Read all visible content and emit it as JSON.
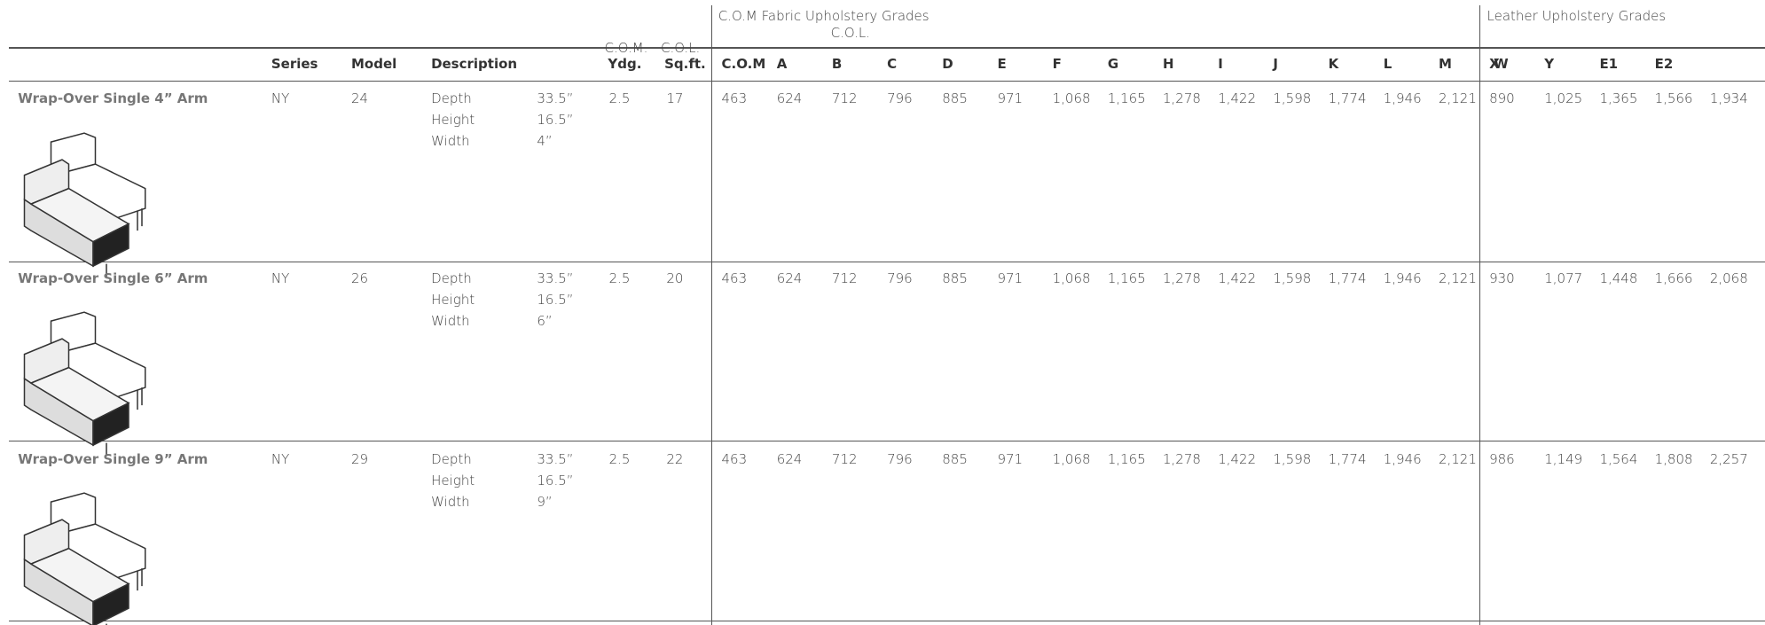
{
  "header": {
    "com_group": {
      "com": "C.O.M.",
      "col": "C.O.L."
    },
    "fabric_group": {
      "title": "C.O.M Fabric Upholstery Grades",
      "col": "C.O.L."
    },
    "leather_group": "Leather Upholstery Grades"
  },
  "table": {
    "columns": [
      "Series",
      "Model",
      "Description",
      "Ydg.",
      "Sq.ft.",
      "C.O.M",
      "A",
      "B",
      "C",
      "D",
      "E",
      "F",
      "G",
      "H",
      "I",
      "J",
      "K",
      "L",
      "M",
      "W",
      "X",
      "Y",
      "E1",
      "E2"
    ],
    "rows": [
      {
        "name": "Wrap-Over Single 4” Arm",
        "series": "NY",
        "model": "24",
        "dimensions": [
          [
            "Depth",
            "33.5”"
          ],
          [
            "Height",
            "16.5”"
          ],
          [
            "Width",
            "4”"
          ]
        ],
        "ydg": "2.5",
        "sqft": "17",
        "fabric": [
          "463",
          "624",
          "712",
          "796",
          "885",
          "971",
          "1,068",
          "1,165",
          "1,278",
          "1,422",
          "1,598",
          "1,774",
          "1,946",
          "2,121"
        ],
        "leather": [
          "890",
          "1,025",
          "1,365",
          "1,566",
          "1,934"
        ]
      },
      {
        "name": "Wrap-Over Single 6” Arm",
        "series": "NY",
        "model": "26",
        "dimensions": [
          [
            "Depth",
            "33.5”"
          ],
          [
            "Height",
            "16.5”"
          ],
          [
            "Width",
            "6”"
          ]
        ],
        "ydg": "2.5",
        "sqft": "20",
        "fabric": [
          "463",
          "624",
          "712",
          "796",
          "885",
          "971",
          "1,068",
          "1,165",
          "1,278",
          "1,422",
          "1,598",
          "1,774",
          "1,946",
          "2,121"
        ],
        "leather": [
          "930",
          "1,077",
          "1,448",
          "1,666",
          "2,068"
        ]
      },
      {
        "name": "Wrap-Over Single 9” Arm",
        "series": "NY",
        "model": "29",
        "dimensions": [
          [
            "Depth",
            "33.5”"
          ],
          [
            "Height",
            "16.5”"
          ],
          [
            "Width",
            "9”"
          ]
        ],
        "ydg": "2.5",
        "sqft": "22",
        "fabric": [
          "463",
          "624",
          "712",
          "796",
          "885",
          "971",
          "1,068",
          "1,165",
          "1,278",
          "1,422",
          "1,598",
          "1,774",
          "1,946",
          "2,121"
        ],
        "leather": [
          "986",
          "1,149",
          "1,564",
          "1,808",
          "2,257"
        ]
      }
    ]
  }
}
